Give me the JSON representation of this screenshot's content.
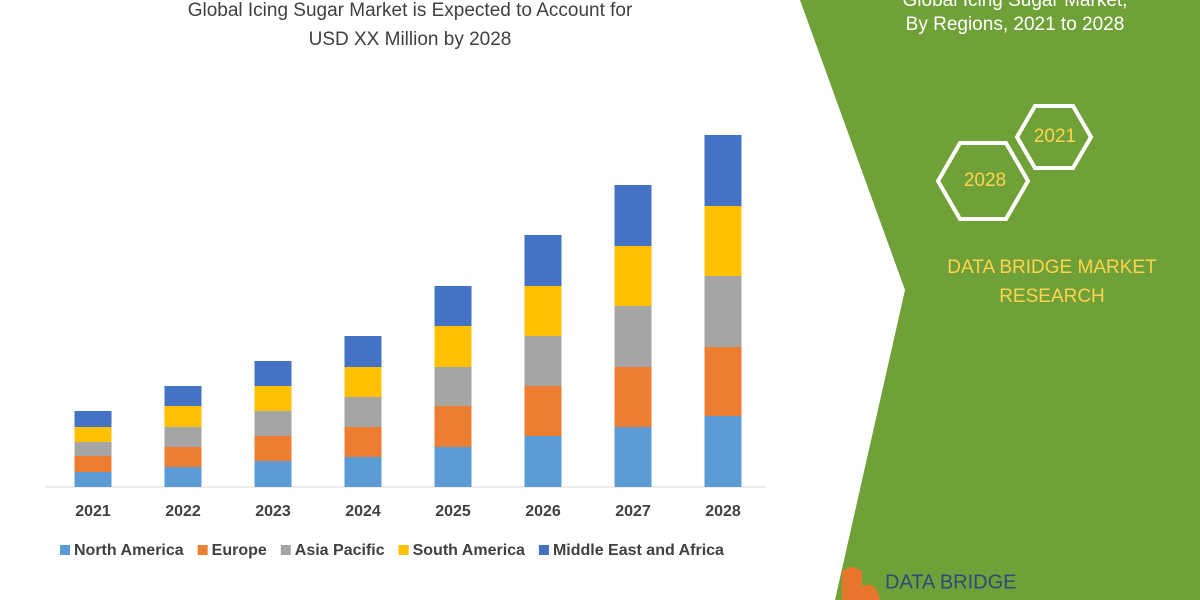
{
  "chart_data": {
    "type": "stacked-bar",
    "title": "Global Icing Sugar Market is Expected to Account for USD XX Million by 2028",
    "categories": [
      "2021",
      "2022",
      "2023",
      "2024",
      "2025",
      "2026",
      "2027",
      "2028"
    ],
    "series": [
      {
        "name": "North America",
        "color": "#5b9bd5",
        "values": [
          15,
          20,
          26,
          30,
          40,
          51,
          60,
          71
        ]
      },
      {
        "name": "Europe",
        "color": "#ed7d31",
        "values": [
          16,
          20,
          25,
          30,
          41,
          50,
          60,
          69
        ]
      },
      {
        "name": "Asia Pacific",
        "color": "#a5a5a5",
        "values": [
          14,
          20,
          25,
          30,
          39,
          50,
          61,
          71
        ]
      },
      {
        "name": "South America",
        "color": "#ffc000",
        "values": [
          15,
          21,
          25,
          30,
          41,
          50,
          60,
          70
        ]
      },
      {
        "name": "Middle East and Africa",
        "color": "#4472c4",
        "values": [
          16,
          20,
          25,
          31,
          40,
          51,
          61,
          71
        ]
      }
    ],
    "legend": "bottom"
  },
  "side_panel": {
    "title_line1": "Global Icing Sugar Market,",
    "title_line2": "By Regions, 2021 to 2028",
    "hex_labels": [
      "2028",
      "2021"
    ],
    "brand_line1": "DATA BRIDGE MARKET",
    "brand_line2": "RESEARCH",
    "logo_text": "DATA BRIDGE"
  }
}
